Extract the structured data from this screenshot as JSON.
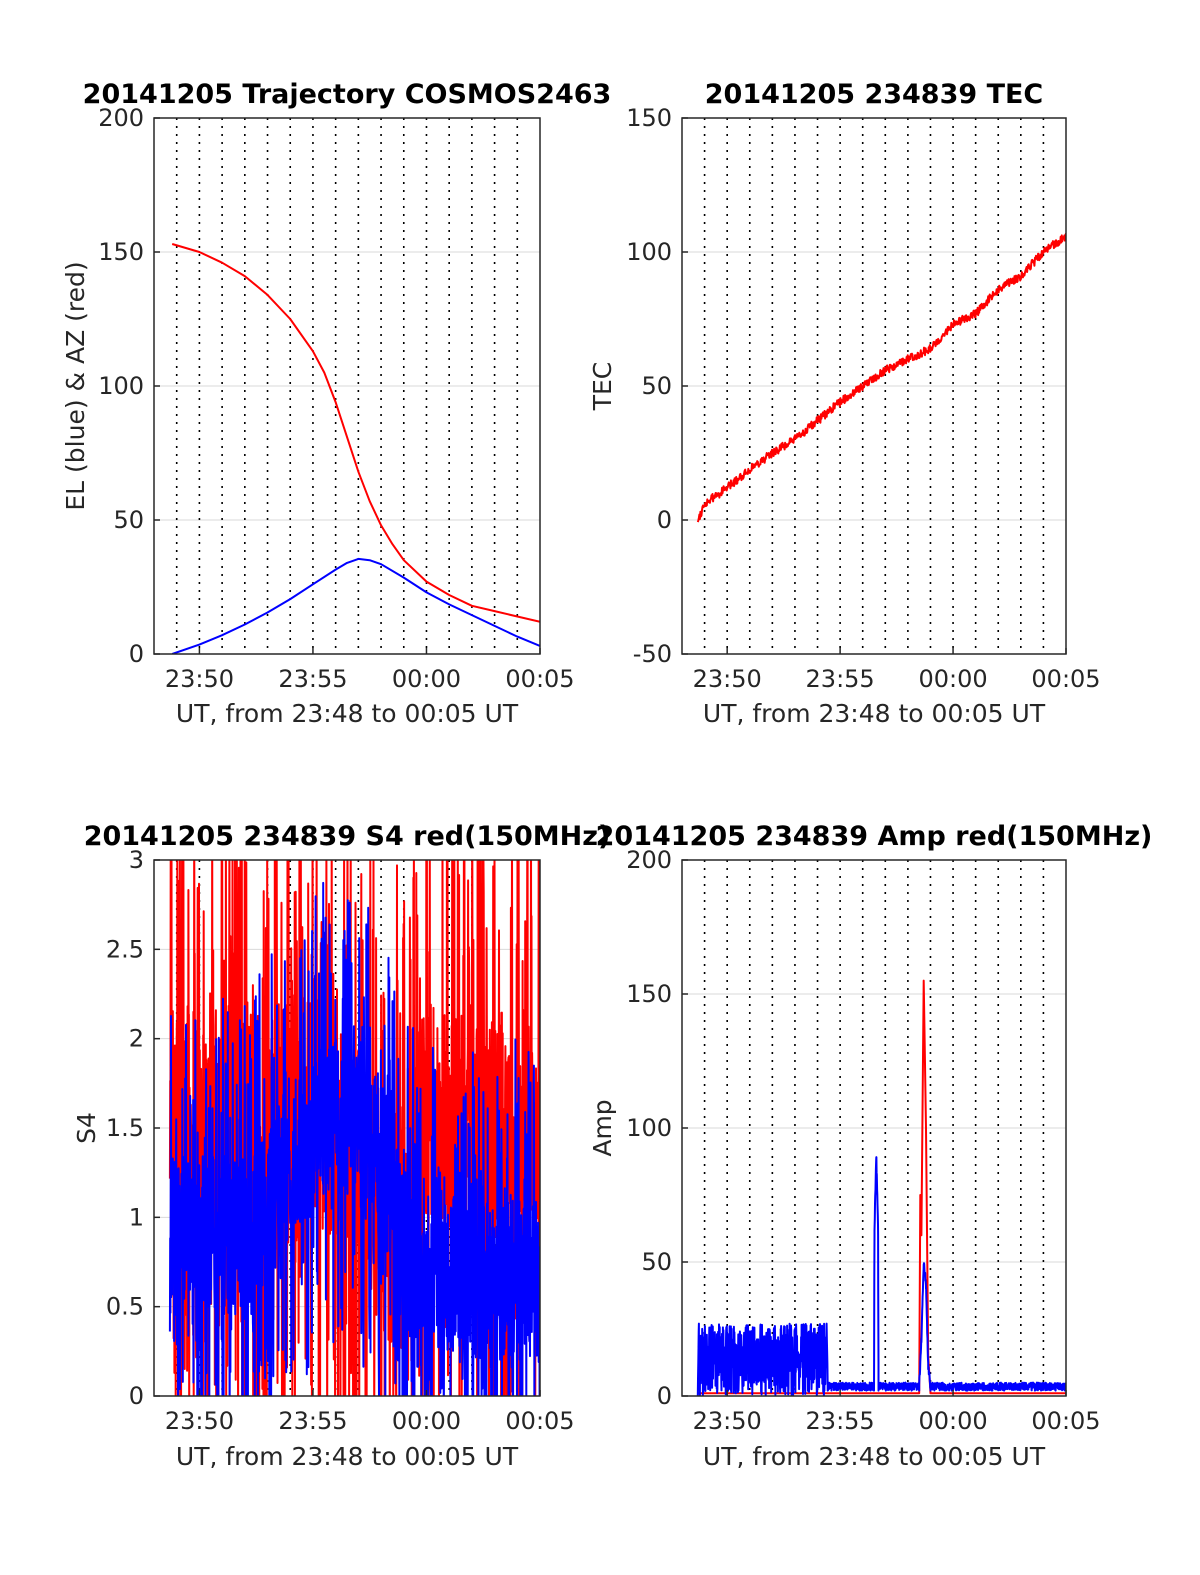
{
  "x_domain_min": [
    -12,
    5
  ],
  "x_tick_labels": [
    "23:50",
    "23:55",
    "00:00",
    "00:05"
  ],
  "x_tick_values_min": [
    -10,
    -5,
    0,
    5
  ],
  "x_minor_grid_min": [
    -11,
    -10,
    -9,
    -8,
    -7,
    -6,
    -5,
    -4,
    -3,
    -2,
    -1,
    0,
    1,
    2,
    3,
    4
  ],
  "colors": {
    "red": "#ff0000",
    "blue": "#0000ff",
    "axis": "#262626",
    "grid": "#d9d9d9"
  },
  "chart_data": [
    {
      "type": "line",
      "title": "20141205 Trajectory COSMOS2463",
      "xlabel": "UT, from 23:48 to 00:05 UT",
      "ylabel": "EL (blue) & AZ (red)",
      "ylim": [
        0,
        200
      ],
      "yticks": [
        "0",
        "50",
        "100",
        "150",
        "200"
      ],
      "ytick_values": [
        0,
        50,
        100,
        150,
        200
      ],
      "series": [
        {
          "color": "red",
          "x": [
            -11.2,
            -10,
            -9,
            -8,
            -7,
            -6,
            -5,
            -4.5,
            -4,
            -3.5,
            -3,
            -2.5,
            -2,
            -1.5,
            -1,
            0,
            1,
            2,
            3,
            4,
            5
          ],
          "y": [
            153,
            150,
            146,
            141,
            134,
            125,
            113,
            105,
            94,
            81,
            68,
            57,
            48,
            41,
            35,
            27,
            22,
            18,
            16,
            14,
            12
          ]
        },
        {
          "color": "blue",
          "x": [
            -11.2,
            -10,
            -9,
            -8,
            -7,
            -6,
            -5,
            -4,
            -3.5,
            -3,
            -2.5,
            -2,
            -1,
            0,
            1,
            2,
            3,
            4,
            5
          ],
          "y": [
            0,
            3.5,
            7,
            11,
            15.5,
            20.5,
            26,
            31.5,
            34,
            35.5,
            35,
            33.5,
            28.5,
            23,
            18.5,
            14.5,
            10.5,
            6.5,
            3
          ]
        }
      ]
    },
    {
      "type": "line",
      "title": "20141205 234839 TEC",
      "xlabel": "UT, from 23:48 to 00:05 UT",
      "ylabel": "TEC",
      "ylim": [
        -50,
        150
      ],
      "yticks": [
        "-50",
        "0",
        "50",
        "100",
        "150"
      ],
      "ytick_values": [
        -50,
        0,
        50,
        100,
        150
      ],
      "series": [
        {
          "color": "red",
          "x": [
            -11.3,
            -11,
            -10,
            -9,
            -8,
            -7,
            -6,
            -5,
            -4,
            -3,
            -2,
            -1,
            0,
            1,
            2,
            3,
            4,
            5
          ],
          "y": [
            0,
            6,
            12,
            19,
            25,
            30,
            37,
            44,
            50,
            56,
            60,
            64,
            73,
            77,
            86,
            91,
            100,
            106
          ]
        }
      ]
    },
    {
      "type": "line",
      "title": "20141205 234839 S4 red(150MHz)",
      "xlabel": "UT, from 23:48 to 00:05 UT",
      "ylabel": "S4",
      "ylim": [
        0,
        3
      ],
      "yticks": [
        "0",
        "0.5",
        "1",
        "1.5",
        "2",
        "2.5",
        "3"
      ],
      "ytick_values": [
        0,
        0.5,
        1,
        1.5,
        2,
        2.5,
        3
      ],
      "series": [
        {
          "color": "red",
          "noise": 0.7,
          "x": [
            -11.3,
            -6.5,
            -5,
            -3,
            -2,
            -1,
            0,
            5
          ],
          "y": [
            1.5,
            1.5,
            1.6,
            1.4,
            1.0,
            0.9,
            1.5,
            1.5
          ]
        },
        {
          "color": "blue",
          "noise": 0.45,
          "x": [
            -11.3,
            -10,
            -8,
            -6.5,
            -5,
            -4,
            -3,
            -2,
            -1.5,
            -1,
            0,
            1,
            2,
            3,
            4,
            5
          ],
          "y": [
            0.9,
            0.9,
            0.9,
            1.2,
            1.5,
            1.6,
            1.5,
            1.3,
            1.2,
            0.75,
            0.7,
            0.7,
            0.65,
            0.65,
            0.65,
            0.65
          ]
        }
      ]
    },
    {
      "type": "line",
      "title": "20141205 234839 Amp red(150MHz)",
      "xlabel": "UT, from 23:48 to 00:05 UT",
      "ylabel": "Amp",
      "ylim": [
        0,
        200
      ],
      "yticks": [
        "0",
        "50",
        "100",
        "150",
        "200"
      ],
      "ytick_values": [
        0,
        50,
        100,
        150,
        200
      ],
      "series": [
        {
          "color": "red",
          "x": [
            -11.3,
            -2.8,
            -1.5,
            -1.45,
            -1.4,
            -1.3,
            -1.2,
            -1.1,
            -1.0,
            5
          ],
          "y": [
            1,
            1,
            1,
            75,
            60,
            155,
            100,
            15,
            1,
            1
          ]
        },
        {
          "color": "blue",
          "x": [
            -11.3,
            -11.25,
            -5.6,
            -5.55,
            -3.5,
            -3.48,
            -3.4,
            -3.32,
            -3.3,
            -1.5,
            -1.4,
            -1.3,
            -1.2,
            -1.1,
            -1.0,
            5
          ],
          "y": [
            0,
            27,
            27,
            2,
            2,
            60,
            89,
            60,
            2,
            2,
            20,
            49,
            40,
            10,
            2,
            2
          ]
        }
      ]
    }
  ]
}
